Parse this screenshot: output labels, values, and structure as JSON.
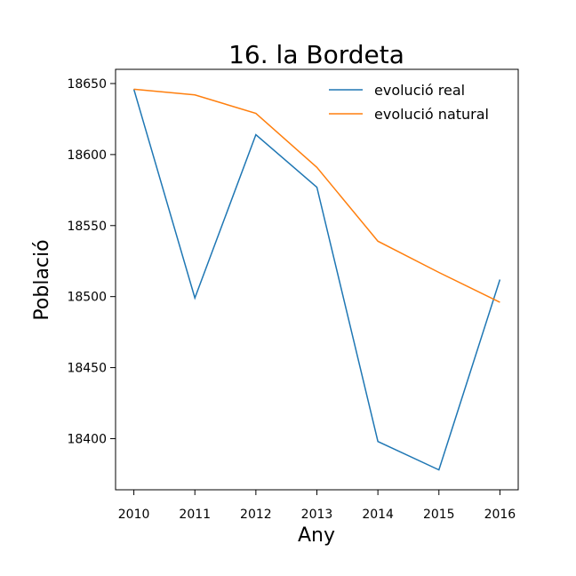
{
  "chart_data": {
    "type": "line",
    "title": "16. la Bordeta",
    "xlabel": "Any",
    "ylabel": "Població",
    "x": [
      2010,
      2011,
      2012,
      2013,
      2014,
      2015,
      2016
    ],
    "xlim": [
      2009.7,
      2016.3
    ],
    "ylim": [
      18364,
      18660
    ],
    "yticks": [
      18400,
      18450,
      18500,
      18550,
      18600,
      18650
    ],
    "grid": false,
    "legend_position": "top-right",
    "series": [
      {
        "name": "evolució real",
        "color": "#1f77b4",
        "values": [
          18646,
          18499,
          18614,
          18577,
          18398,
          18378,
          18512
        ]
      },
      {
        "name": "evolució natural",
        "color": "#ff7f0e",
        "values": [
          18646,
          18642,
          18629,
          18591,
          18539,
          18517,
          18496
        ]
      }
    ]
  }
}
